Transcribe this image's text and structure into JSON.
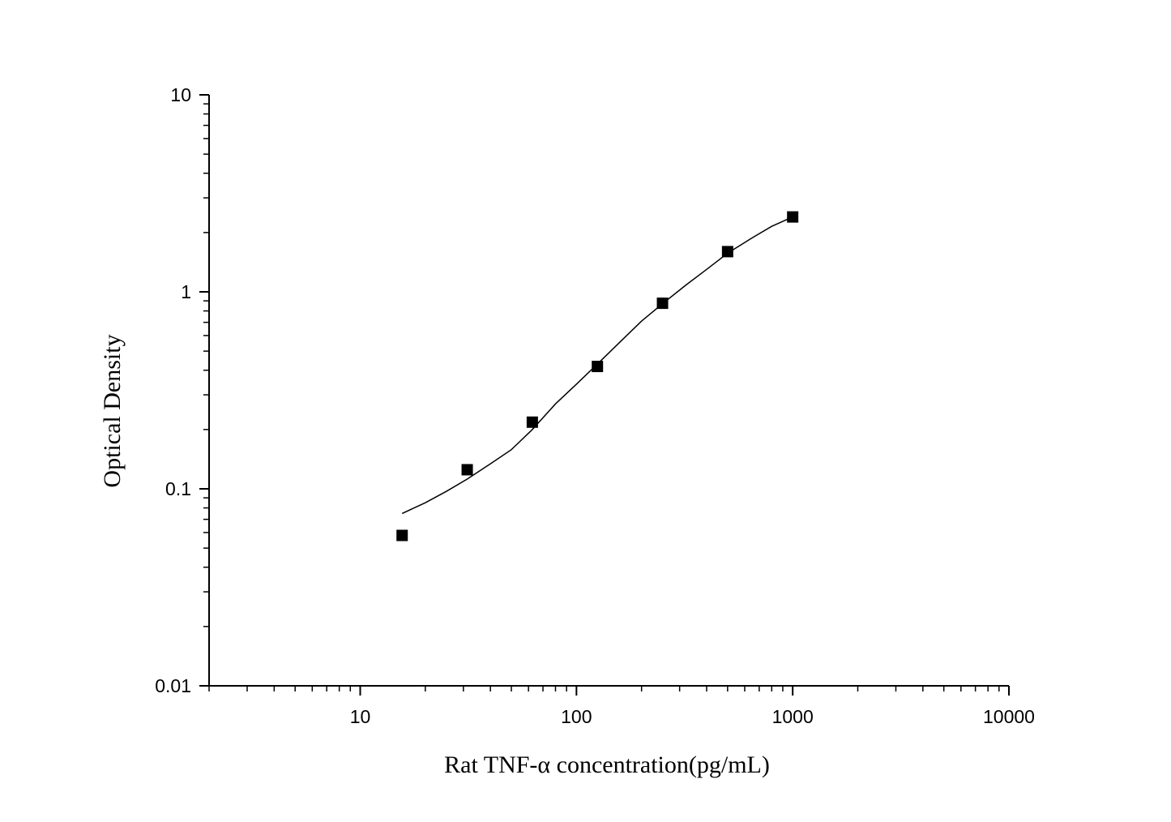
{
  "chart_data": {
    "type": "scatter",
    "title": "",
    "xlabel": "Rat TNF-α  concentration(pg/mL)",
    "ylabel": "Optical Density",
    "x_scale": "log",
    "y_scale": "log",
    "xlim": [
      2,
      10000
    ],
    "ylim": [
      0.01,
      10
    ],
    "grid": false,
    "x_tick_labels": [
      "10",
      "100",
      "1000",
      "10000"
    ],
    "y_tick_labels": [
      "0.01",
      "0.1",
      "1",
      "10"
    ],
    "series": [
      {
        "marker": "square",
        "x": [
          15.625,
          31.25,
          62.5,
          125,
          250,
          500,
          1000
        ],
        "y": [
          0.058,
          0.125,
          0.218,
          0.418,
          0.875,
          1.6,
          2.4
        ]
      }
    ],
    "fit_curve": {
      "model": "four-parameter logistic",
      "x_range": [
        15.625,
        1000
      ],
      "points": [
        [
          15.625,
          0.075
        ],
        [
          20,
          0.085
        ],
        [
          25,
          0.097
        ],
        [
          31.25,
          0.112
        ],
        [
          40,
          0.134
        ],
        [
          50,
          0.158
        ],
        [
          62.5,
          0.2
        ],
        [
          80,
          0.27
        ],
        [
          100,
          0.34
        ],
        [
          125,
          0.43
        ],
        [
          160,
          0.56
        ],
        [
          200,
          0.71
        ],
        [
          250,
          0.87
        ],
        [
          320,
          1.08
        ],
        [
          400,
          1.3
        ],
        [
          500,
          1.57
        ],
        [
          650,
          1.88
        ],
        [
          800,
          2.15
        ],
        [
          1000,
          2.4
        ]
      ]
    },
    "colors": {
      "markers": "#000000",
      "curve": "#000000",
      "axes": "#000000"
    }
  }
}
